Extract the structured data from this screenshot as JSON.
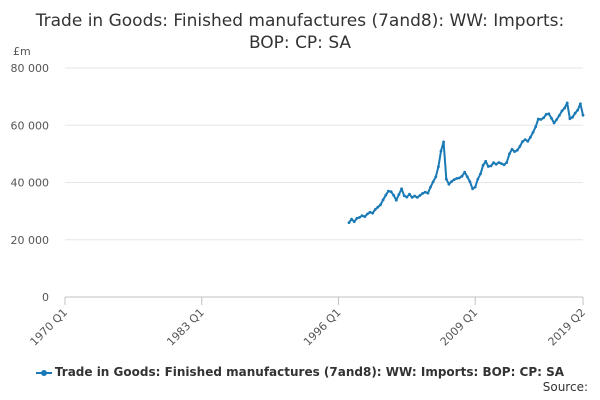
{
  "chart_data": {
    "type": "line",
    "title": "Trade in Goods: Finished manufactures (7and8): WW: Imports: BOP: CP: SA",
    "ylabel": "£m",
    "ylim": [
      0,
      80000
    ],
    "yticks": [
      0,
      20000,
      40000,
      60000,
      80000
    ],
    "ytick_labels": [
      "0",
      "20 000",
      "40 000",
      "60 000",
      "80 000"
    ],
    "xlim": [
      "1970 Q1",
      "2019 Q2"
    ],
    "xticks": [
      "1970 Q1",
      "1983 Q1",
      "1996 Q1",
      "2009 Q1",
      "2019 Q2"
    ],
    "grid": "horizontal",
    "legend_position": "bottom",
    "series": [
      {
        "name": "Trade in Goods: Finished manufactures (7and8): WW: Imports: BOP: CP: SA",
        "color": "#1a7ab6",
        "x": [
          "1997 Q1",
          "1997 Q2",
          "1997 Q3",
          "1997 Q4",
          "1998 Q1",
          "1998 Q2",
          "1998 Q3",
          "1998 Q4",
          "1999 Q1",
          "1999 Q2",
          "1999 Q3",
          "1999 Q4",
          "2000 Q1",
          "2000 Q2",
          "2000 Q3",
          "2000 Q4",
          "2001 Q1",
          "2001 Q2",
          "2001 Q3",
          "2001 Q4",
          "2002 Q1",
          "2002 Q2",
          "2002 Q3",
          "2002 Q4",
          "2003 Q1",
          "2003 Q2",
          "2003 Q3",
          "2003 Q4",
          "2004 Q1",
          "2004 Q2",
          "2004 Q3",
          "2004 Q4",
          "2005 Q1",
          "2005 Q2",
          "2005 Q3",
          "2005 Q4",
          "2006 Q1",
          "2006 Q2",
          "2006 Q3",
          "2006 Q4",
          "2007 Q1",
          "2007 Q2",
          "2007 Q3",
          "2007 Q4",
          "2008 Q1",
          "2008 Q2",
          "2008 Q3",
          "2008 Q4",
          "2009 Q1",
          "2009 Q2",
          "2009 Q3",
          "2009 Q4",
          "2010 Q1",
          "2010 Q2",
          "2010 Q3",
          "2010 Q4",
          "2011 Q1",
          "2011 Q2",
          "2011 Q3",
          "2011 Q4",
          "2012 Q1",
          "2012 Q2",
          "2012 Q3",
          "2012 Q4",
          "2013 Q1",
          "2013 Q2",
          "2013 Q3",
          "2013 Q4",
          "2014 Q1",
          "2014 Q2",
          "2014 Q3",
          "2014 Q4",
          "2015 Q1",
          "2015 Q2",
          "2015 Q3",
          "2015 Q4",
          "2016 Q1",
          "2016 Q2",
          "2016 Q3",
          "2016 Q4",
          "2017 Q1",
          "2017 Q2",
          "2017 Q3",
          "2017 Q4",
          "2018 Q1",
          "2018 Q2",
          "2018 Q3",
          "2018 Q4",
          "2019 Q1",
          "2019 Q2"
        ],
        "values": [
          26000,
          27200,
          26300,
          27500,
          27800,
          28400,
          28100,
          29000,
          29600,
          29300,
          30600,
          31400,
          32200,
          34000,
          35600,
          37000,
          36800,
          35500,
          33800,
          35800,
          37800,
          35400,
          34900,
          35900,
          34800,
          35300,
          34800,
          35500,
          36200,
          36600,
          36300,
          38400,
          40200,
          42000,
          45500,
          51000,
          54200,
          41200,
          39400,
          40300,
          41000,
          41400,
          41600,
          42200,
          43600,
          42000,
          40300,
          37800,
          38400,
          41200,
          43000,
          46000,
          47400,
          45600,
          45800,
          46900,
          46400,
          47000,
          46600,
          46200,
          47000,
          50000,
          51600,
          50800,
          51300,
          52600,
          54300,
          55000,
          54400,
          55800,
          57500,
          59500,
          62200,
          62000,
          62600,
          63800,
          64000,
          62500,
          60800,
          62000,
          63400,
          65000,
          66000,
          67800,
          62300,
          62800,
          64200,
          65300,
          67500,
          63500
        ]
      }
    ]
  },
  "source_label": "Source:"
}
